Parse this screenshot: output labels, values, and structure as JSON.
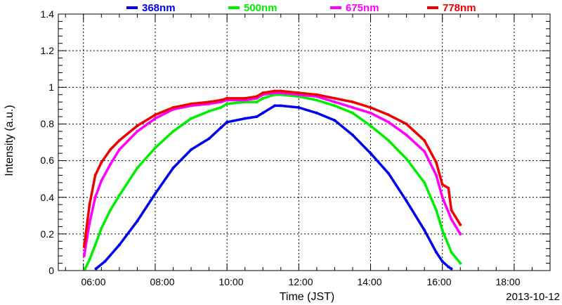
{
  "chart_data": {
    "type": "line",
    "title": "",
    "xlabel": "Time (JST)",
    "ylabel": "Intensity (a.u.)",
    "date": "2013-10-12",
    "xlim": [
      5.3,
      19.0
    ],
    "ylim": [
      0,
      1.4
    ],
    "x_ticks": [
      6,
      8,
      10,
      12,
      14,
      16,
      18
    ],
    "x_tick_labels": [
      "06:00",
      "08:00",
      "10:00",
      "12:00",
      "14:00",
      "16:00",
      "18:00"
    ],
    "y_ticks": [
      0,
      0.2,
      0.4,
      0.6,
      0.8,
      1.0,
      1.2,
      1.4
    ],
    "y_tick_labels": [
      "0",
      "0.2",
      "0.4",
      "0.6",
      "0.8",
      "1",
      "1.2",
      "1.4"
    ],
    "grid": true,
    "legend_position": "top",
    "series": [
      {
        "name": "368nm",
        "color": "#0000ee",
        "x": [
          6.35,
          6.6,
          7.0,
          7.5,
          8.0,
          8.5,
          9.0,
          9.5,
          9.83,
          10.0,
          10.5,
          10.83,
          11.0,
          11.33,
          11.5,
          12.0,
          12.5,
          13.0,
          13.5,
          14.0,
          14.5,
          15.0,
          15.5,
          15.83,
          16.0,
          16.17,
          16.25
        ],
        "y": [
          0.01,
          0.05,
          0.14,
          0.27,
          0.42,
          0.56,
          0.66,
          0.72,
          0.78,
          0.81,
          0.83,
          0.84,
          0.86,
          0.9,
          0.9,
          0.89,
          0.86,
          0.82,
          0.74,
          0.64,
          0.53,
          0.38,
          0.22,
          0.1,
          0.05,
          0.02,
          0.01
        ]
      },
      {
        "name": "500nm",
        "color": "#00ee00",
        "x": [
          6.05,
          6.17,
          6.33,
          6.5,
          6.75,
          7.0,
          7.5,
          8.0,
          8.5,
          9.0,
          9.5,
          9.83,
          10.0,
          10.5,
          10.83,
          11.0,
          11.33,
          11.5,
          12.0,
          12.5,
          13.0,
          13.5,
          14.0,
          14.5,
          15.0,
          15.5,
          15.83,
          16.0,
          16.25,
          16.5
        ],
        "y": [
          0.01,
          0.06,
          0.14,
          0.23,
          0.33,
          0.41,
          0.56,
          0.67,
          0.76,
          0.83,
          0.87,
          0.89,
          0.91,
          0.92,
          0.92,
          0.94,
          0.96,
          0.96,
          0.95,
          0.93,
          0.9,
          0.86,
          0.79,
          0.71,
          0.61,
          0.48,
          0.33,
          0.22,
          0.1,
          0.04
        ]
      },
      {
        "name": "675nm",
        "color": "#ff00ff",
        "x": [
          6.02,
          6.17,
          6.33,
          6.5,
          6.75,
          7.0,
          7.5,
          8.0,
          8.5,
          9.0,
          9.5,
          9.83,
          10.0,
          10.5,
          10.83,
          11.0,
          11.33,
          11.5,
          12.0,
          12.5,
          13.0,
          13.5,
          14.0,
          14.5,
          15.0,
          15.5,
          15.83,
          16.0,
          16.25,
          16.5
        ],
        "y": [
          0.08,
          0.26,
          0.4,
          0.49,
          0.58,
          0.66,
          0.76,
          0.83,
          0.88,
          0.9,
          0.91,
          0.92,
          0.93,
          0.93,
          0.94,
          0.96,
          0.97,
          0.97,
          0.96,
          0.95,
          0.92,
          0.89,
          0.86,
          0.81,
          0.74,
          0.65,
          0.52,
          0.4,
          0.28,
          0.2
        ]
      },
      {
        "name": "778nm",
        "color": "#ee0000",
        "x": [
          6.02,
          6.17,
          6.33,
          6.5,
          6.75,
          7.0,
          7.5,
          8.0,
          8.5,
          9.0,
          9.5,
          9.83,
          10.0,
          10.5,
          10.83,
          11.0,
          11.33,
          11.5,
          12.0,
          12.5,
          13.0,
          13.5,
          14.0,
          14.5,
          15.0,
          15.5,
          15.83,
          16.0,
          16.17,
          16.25,
          16.5
        ],
        "y": [
          0.13,
          0.36,
          0.52,
          0.59,
          0.66,
          0.71,
          0.79,
          0.85,
          0.89,
          0.91,
          0.92,
          0.93,
          0.94,
          0.94,
          0.95,
          0.97,
          0.98,
          0.98,
          0.97,
          0.96,
          0.94,
          0.92,
          0.89,
          0.85,
          0.8,
          0.71,
          0.59,
          0.47,
          0.45,
          0.33,
          0.25
        ]
      }
    ]
  }
}
